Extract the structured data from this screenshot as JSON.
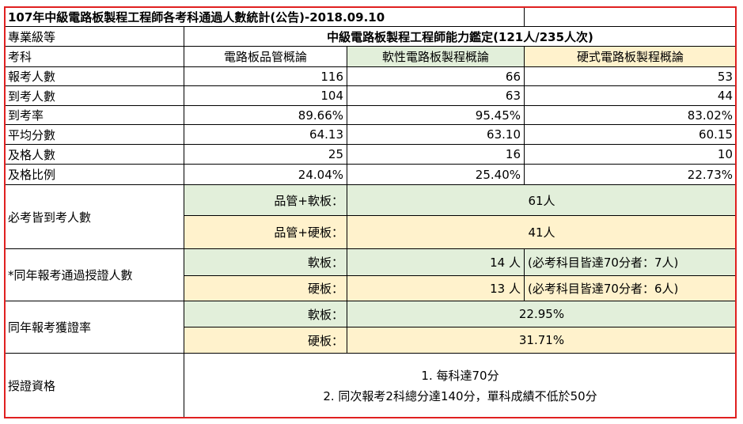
{
  "title": "107年中級電路板製程工程師各考科通過人數統計(公告)-2018.09.10",
  "table": {
    "level": {
      "label": "專業級等",
      "value": "中級電路板製程工程師能力鑑定(121人/235人次)"
    },
    "subjects": [
      "考科",
      "電路板品管概論",
      "軟性電路板製程概論",
      "硬式電路板製程概論"
    ],
    "rows": [
      [
        "報考人數",
        "116",
        "66",
        "53"
      ],
      [
        "到考人數",
        "104",
        "63",
        "44"
      ],
      [
        "到考率",
        "89.66%",
        "95.45%",
        "83.02%"
      ],
      [
        "平均分數",
        "64.13",
        "63.10",
        "60.15"
      ],
      [
        "及格人數",
        "25",
        "16",
        "10"
      ],
      [
        "及格比例",
        "24.04%",
        "25.40%",
        "22.73%"
      ]
    ],
    "attended": {
      "label": "必考皆到考人數",
      "items": [
        {
          "label": "品管+軟板：",
          "value": "61人"
        },
        {
          "label": "品管+硬板：",
          "value": "41人"
        }
      ]
    },
    "certified": {
      "label": "*同年報考通過授證人數",
      "items": [
        {
          "label": "軟板：",
          "value": "14 人",
          "note": "(必考科目皆達70分者：7人)"
        },
        {
          "label": "硬板：",
          "value": "13 人",
          "note": "(必考科目皆達70分者：6人)"
        }
      ]
    },
    "rate": {
      "label": "同年報考獲證率",
      "items": [
        {
          "label": "軟板：",
          "value": "22.95%"
        },
        {
          "label": "硬板：",
          "value": "31.71%"
        }
      ]
    },
    "qualification": {
      "label": "授證資格",
      "lines": [
        "1. 每科達70分",
        "2. 同次報考2科總分達140分，單科成績不低於50分"
      ]
    }
  }
}
